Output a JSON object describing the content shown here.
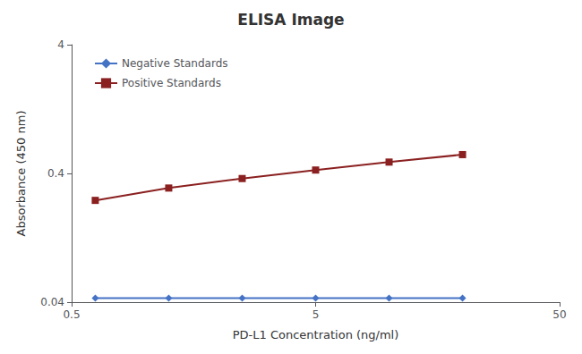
{
  "chart_data": {
    "type": "line",
    "title": "ELISA Image",
    "xlabel": "PD-L1 Concentration (ng/ml)",
    "ylabel": "Absorbance (450 nm)",
    "x": [
      0.625,
      1.25,
      2.5,
      5.0,
      10.0,
      20.0
    ],
    "series": [
      {
        "name": "Negative Standards",
        "color": "#4472C4",
        "marker": "diamond",
        "values": [
          0.043,
          0.043,
          0.043,
          0.043,
          0.043,
          0.043
        ]
      },
      {
        "name": "Positive Standards",
        "color": "#8B2020",
        "marker": "square",
        "values": [
          0.247,
          0.308,
          0.365,
          0.425,
          0.49,
          0.56
        ]
      }
    ],
    "log": true,
    "xlim": [
      0.5,
      50
    ],
    "ylim": [
      0.04,
      4
    ],
    "xticks": [
      0.5,
      5,
      50
    ],
    "yticks": [
      0.04,
      0.4,
      4
    ],
    "legend": "upper left",
    "grid": false
  }
}
